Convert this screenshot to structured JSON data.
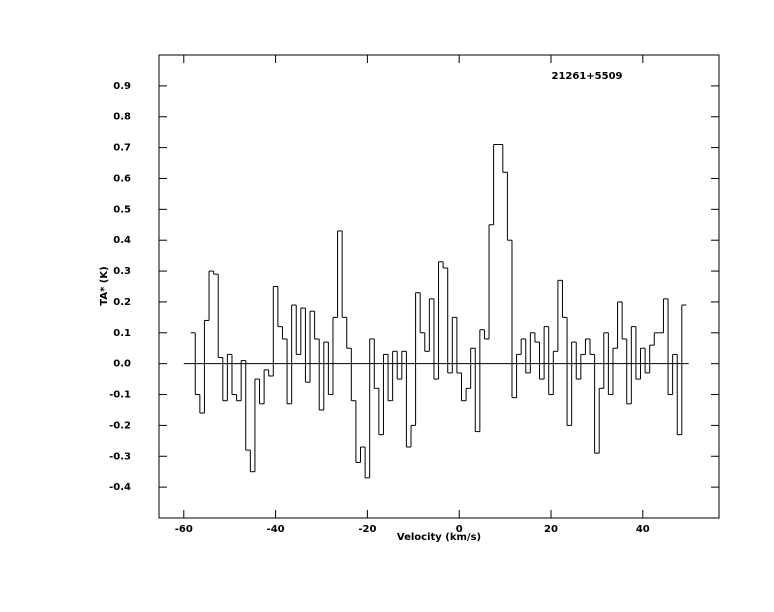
{
  "chart_data": {
    "type": "step",
    "annotation": "21261+5509",
    "xlabel": "Velocity (km/s)",
    "ylabel": "TA* (K)",
    "x": [
      -58,
      -57,
      -56,
      -55,
      -54,
      -53,
      -52,
      -51,
      -50,
      -49,
      -48,
      -47,
      -46,
      -45,
      -44,
      -43,
      -42,
      -41,
      -40,
      -39,
      -38,
      -37,
      -36,
      -35,
      -34,
      -33,
      -32,
      -31,
      -30,
      -29,
      -28,
      -27,
      -26,
      -25,
      -24,
      -23,
      -22,
      -21,
      -20,
      -19,
      -18,
      -17,
      -16,
      -15,
      -14,
      -13,
      -12,
      -11,
      -10,
      -9,
      -8,
      -7,
      -6,
      -5,
      -4,
      -3,
      -2,
      -1,
      0,
      1,
      2,
      3,
      4,
      5,
      6,
      7,
      8,
      9,
      10,
      11,
      12,
      13,
      14,
      15,
      16,
      17,
      18,
      19,
      20,
      21,
      22,
      23,
      24,
      25,
      26,
      27,
      28,
      29,
      30,
      31,
      32,
      33,
      34,
      35,
      36,
      37,
      38,
      39,
      40,
      41,
      42,
      43,
      44,
      45,
      46,
      47,
      48,
      49
    ],
    "values": [
      0.1,
      -0.1,
      -0.16,
      0.14,
      0.3,
      0.29,
      0.02,
      -0.12,
      0.03,
      -0.1,
      -0.12,
      0.01,
      -0.28,
      -0.35,
      -0.05,
      -0.13,
      -0.02,
      -0.04,
      0.25,
      0.12,
      0.08,
      -0.13,
      0.19,
      0.03,
      0.18,
      -0.06,
      0.17,
      0.08,
      -0.15,
      0.07,
      -0.1,
      0.15,
      0.43,
      0.15,
      0.05,
      -0.12,
      -0.32,
      -0.27,
      -0.37,
      0.08,
      -0.08,
      -0.23,
      0.03,
      -0.12,
      0.04,
      -0.05,
      0.04,
      -0.27,
      -0.2,
      0.23,
      0.1,
      0.04,
      0.21,
      -0.05,
      0.33,
      0.31,
      -0.03,
      0.15,
      -0.03,
      -0.12,
      -0.08,
      0.05,
      -0.22,
      0.11,
      0.08,
      0.45,
      0.71,
      0.71,
      0.62,
      0.4,
      -0.11,
      0.03,
      0.08,
      -0.03,
      0.1,
      0.07,
      -0.05,
      0.12,
      -0.1,
      0.04,
      0.27,
      0.15,
      -0.2,
      0.07,
      -0.05,
      0.03,
      0.08,
      0.03,
      -0.29,
      -0.08,
      0.1,
      -0.1,
      0.05,
      0.2,
      0.08,
      -0.13,
      0.12,
      -0.05,
      0.05,
      -0.03,
      0.06,
      0.1,
      0.1,
      0.21,
      -0.1,
      0.03,
      -0.23,
      0.19
    ],
    "color": "#000000",
    "baseline": 0,
    "baseline_xlim": [
      -60,
      50
    ],
    "xlim": [
      -65.4,
      56.6
    ],
    "ylim": [
      -0.5,
      1.0
    ],
    "xticks": [
      -60,
      -40,
      -20,
      0,
      20,
      40
    ],
    "yticks": [
      -0.4,
      -0.3,
      -0.2,
      -0.1,
      {
        "value": 0,
        "label": "0.0"
      },
      0.1,
      0.2,
      0.3,
      0.4,
      0.5,
      0.6,
      0.7,
      0.8,
      0.9
    ]
  }
}
